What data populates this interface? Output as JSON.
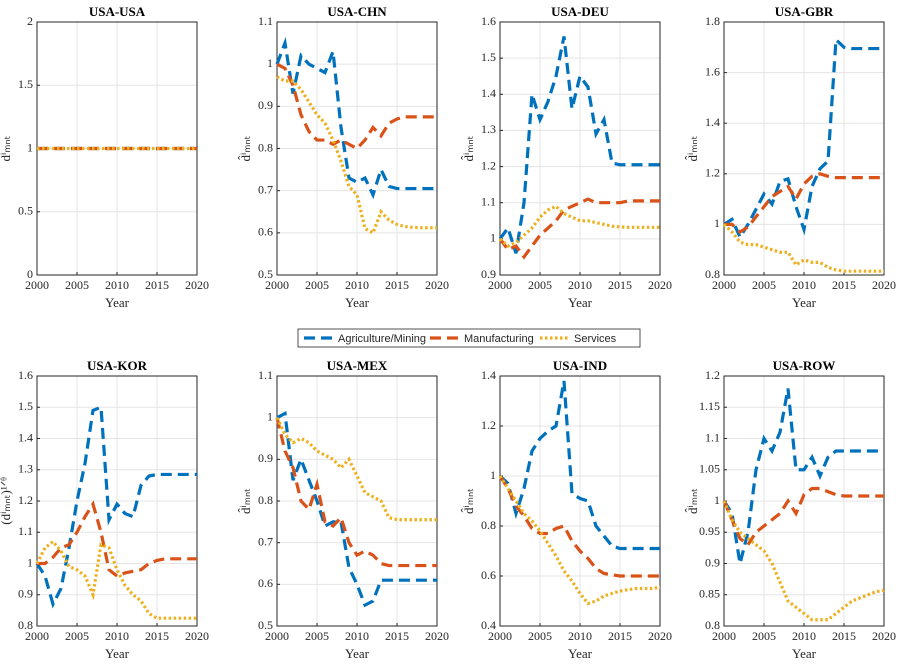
{
  "chart_data": [
    {
      "type": "line",
      "title": "USA-USA",
      "x_label": "Year",
      "y_label": "d̂ⁱₘₙₜ",
      "x": [
        2000,
        2001,
        2002,
        2003,
        2004,
        2005,
        2006,
        2007,
        2008,
        2009,
        2010,
        2011,
        2012,
        2013,
        2014,
        2015,
        2016,
        2017,
        2018,
        2019,
        2020
      ],
      "xlim": [
        2000,
        2020
      ],
      "xticks": [
        2000,
        2005,
        2010,
        2015,
        2020
      ],
      "ylim": [
        0,
        2
      ],
      "yticks": [
        0,
        0.5,
        1,
        1.5,
        2
      ],
      "grid": true,
      "series": [
        {
          "name": "Agriculture/Mining",
          "color": "#0072bd",
          "linestyle": "dashed",
          "values": [
            1,
            1,
            1,
            1,
            1,
            1,
            1,
            1,
            1,
            1,
            1,
            1,
            1,
            1,
            1,
            1,
            1,
            1,
            1,
            1,
            1
          ]
        },
        {
          "name": "Manufacturing",
          "color": "#d95319",
          "linestyle": "dashed",
          "values": [
            1,
            1,
            1,
            1,
            1,
            1,
            1,
            1,
            1,
            1,
            1,
            1,
            1,
            1,
            1,
            1,
            1,
            1,
            1,
            1,
            1
          ]
        },
        {
          "name": "Services",
          "color": "#edb120",
          "linestyle": "dotted",
          "values": [
            1,
            1,
            1,
            1,
            1,
            1,
            1,
            1,
            1,
            1,
            1,
            1,
            1,
            1,
            1,
            1,
            1,
            1,
            1,
            1,
            1
          ]
        }
      ]
    },
    {
      "type": "line",
      "title": "USA-CHN",
      "x_label": "Year",
      "y_label": "d̂ⁱₘₙₜ",
      "x": [
        2000,
        2001,
        2002,
        2003,
        2004,
        2005,
        2006,
        2007,
        2008,
        2009,
        2010,
        2011,
        2012,
        2013,
        2014,
        2015,
        2016,
        2017,
        2018,
        2019,
        2020
      ],
      "xlim": [
        2000,
        2020
      ],
      "xticks": [
        2000,
        2005,
        2010,
        2015,
        2020
      ],
      "ylim": [
        0.5,
        1.1
      ],
      "yticks": [
        0.5,
        0.6,
        0.7,
        0.8,
        0.9,
        1,
        1.1
      ],
      "grid": true,
      "series": [
        {
          "name": "Agriculture/Mining",
          "color": "#0072bd",
          "linestyle": "dashed",
          "values": [
            1.0,
            1.05,
            0.93,
            1.02,
            1.0,
            0.99,
            0.98,
            1.03,
            0.85,
            0.73,
            0.72,
            0.73,
            0.69,
            0.75,
            0.71,
            0.705,
            0.705,
            0.705,
            0.705,
            0.705,
            0.705
          ]
        },
        {
          "name": "Manufacturing",
          "color": "#d95319",
          "linestyle": "dashed",
          "values": [
            1.0,
            0.99,
            0.95,
            0.88,
            0.84,
            0.82,
            0.82,
            0.81,
            0.82,
            0.81,
            0.8,
            0.82,
            0.85,
            0.83,
            0.86,
            0.87,
            0.875,
            0.875,
            0.875,
            0.875,
            0.875
          ]
        },
        {
          "name": "Services",
          "color": "#edb120",
          "linestyle": "dotted",
          "values": [
            0.97,
            0.96,
            0.96,
            0.94,
            0.91,
            0.88,
            0.86,
            0.82,
            0.77,
            0.71,
            0.69,
            0.61,
            0.6,
            0.65,
            0.63,
            0.62,
            0.615,
            0.613,
            0.612,
            0.612,
            0.612
          ]
        }
      ]
    },
    {
      "type": "line",
      "title": "USA-DEU",
      "x_label": "Year",
      "y_label": "d̂ⁱₘₙₜ",
      "x": [
        2000,
        2001,
        2002,
        2003,
        2004,
        2005,
        2006,
        2007,
        2008,
        2009,
        2010,
        2011,
        2012,
        2013,
        2014,
        2015,
        2016,
        2017,
        2018,
        2019,
        2020
      ],
      "xlim": [
        2000,
        2020
      ],
      "xticks": [
        2000,
        2005,
        2010,
        2015,
        2020
      ],
      "ylim": [
        0.9,
        1.6
      ],
      "yticks": [
        0.9,
        1,
        1.1,
        1.2,
        1.3,
        1.4,
        1.5,
        1.6
      ],
      "grid": true,
      "series": [
        {
          "name": "Agriculture/Mining",
          "color": "#0072bd",
          "linestyle": "dashed",
          "values": [
            1.0,
            1.03,
            0.96,
            1.1,
            1.4,
            1.33,
            1.38,
            1.45,
            1.56,
            1.36,
            1.45,
            1.42,
            1.29,
            1.33,
            1.21,
            1.205,
            1.205,
            1.205,
            1.205,
            1.205,
            1.205
          ]
        },
        {
          "name": "Manufacturing",
          "color": "#d95319",
          "linestyle": "dashed",
          "values": [
            1.0,
            0.97,
            0.98,
            0.95,
            0.98,
            1.01,
            1.03,
            1.05,
            1.08,
            1.09,
            1.1,
            1.11,
            1.1,
            1.1,
            1.1,
            1.1,
            1.105,
            1.105,
            1.105,
            1.105,
            1.105
          ]
        },
        {
          "name": "Services",
          "color": "#edb120",
          "linestyle": "dotted",
          "values": [
            1.0,
            0.98,
            0.99,
            1.01,
            1.03,
            1.06,
            1.08,
            1.09,
            1.07,
            1.06,
            1.05,
            1.05,
            1.045,
            1.04,
            1.035,
            1.033,
            1.032,
            1.032,
            1.032,
            1.032,
            1.032
          ]
        }
      ]
    },
    {
      "type": "line",
      "title": "USA-GBR",
      "x_label": "Year",
      "y_label": "d̂ⁱₘₙₜ",
      "x": [
        2000,
        2001,
        2002,
        2003,
        2004,
        2005,
        2006,
        2007,
        2008,
        2009,
        2010,
        2011,
        2012,
        2013,
        2014,
        2015,
        2016,
        2017,
        2018,
        2019,
        2020
      ],
      "xlim": [
        2000,
        2020
      ],
      "xticks": [
        2000,
        2005,
        2010,
        2015,
        2020
      ],
      "ylim": [
        0.8,
        1.8
      ],
      "yticks": [
        0.8,
        1,
        1.2,
        1.4,
        1.6,
        1.8
      ],
      "grid": true,
      "series": [
        {
          "name": "Agriculture/Mining",
          "color": "#0072bd",
          "linestyle": "dashed",
          "values": [
            1.0,
            1.02,
            0.95,
            1.0,
            1.06,
            1.12,
            1.08,
            1.17,
            1.18,
            1.07,
            0.98,
            1.15,
            1.22,
            1.25,
            1.73,
            1.7,
            1.695,
            1.695,
            1.695,
            1.695,
            1.695
          ]
        },
        {
          "name": "Manufacturing",
          "color": "#d95319",
          "linestyle": "dashed",
          "values": [
            1.0,
            1.0,
            0.97,
            0.99,
            1.03,
            1.07,
            1.11,
            1.13,
            1.15,
            1.1,
            1.16,
            1.19,
            1.2,
            1.19,
            1.185,
            1.185,
            1.185,
            1.185,
            1.185,
            1.185,
            1.185
          ]
        },
        {
          "name": "Services",
          "color": "#edb120",
          "linestyle": "dotted",
          "values": [
            1.0,
            0.97,
            0.93,
            0.92,
            0.92,
            0.91,
            0.9,
            0.89,
            0.89,
            0.84,
            0.86,
            0.85,
            0.85,
            0.83,
            0.82,
            0.815,
            0.815,
            0.815,
            0.815,
            0.815,
            0.815
          ]
        }
      ]
    },
    {
      "type": "line",
      "title": "USA-KOR",
      "x_label": "Year",
      "y_label": "(d̂ⁱₘₙₜ)¹ᐟᶿ",
      "x": [
        2000,
        2001,
        2002,
        2003,
        2004,
        2005,
        2006,
        2007,
        2008,
        2009,
        2010,
        2011,
        2012,
        2013,
        2014,
        2015,
        2016,
        2017,
        2018,
        2019,
        2020
      ],
      "xlim": [
        2000,
        2020
      ],
      "xticks": [
        2000,
        2005,
        2010,
        2015,
        2020
      ],
      "ylim": [
        0.8,
        1.6
      ],
      "yticks": [
        0.8,
        0.9,
        1,
        1.1,
        1.2,
        1.3,
        1.4,
        1.5,
        1.6
      ],
      "grid": true,
      "series": [
        {
          "name": "Agriculture/Mining",
          "color": "#0072bd",
          "linestyle": "dashed",
          "values": [
            1.0,
            0.96,
            0.87,
            0.92,
            1.05,
            1.2,
            1.32,
            1.49,
            1.5,
            1.14,
            1.19,
            1.16,
            1.15,
            1.25,
            1.28,
            1.285,
            1.285,
            1.285,
            1.285,
            1.285,
            1.285
          ]
        },
        {
          "name": "Manufacturing",
          "color": "#d95319",
          "linestyle": "dashed",
          "values": [
            1.0,
            1.0,
            1.02,
            1.05,
            1.06,
            1.1,
            1.15,
            1.19,
            1.1,
            0.98,
            0.96,
            0.97,
            0.975,
            0.98,
            1.0,
            1.01,
            1.015,
            1.015,
            1.015,
            1.015,
            1.015
          ]
        },
        {
          "name": "Services",
          "color": "#edb120",
          "linestyle": "dotted",
          "values": [
            1.0,
            1.05,
            1.07,
            1.04,
            0.99,
            0.98,
            0.96,
            0.9,
            1.06,
            1.05,
            0.98,
            0.93,
            0.9,
            0.88,
            0.84,
            0.825,
            0.825,
            0.825,
            0.825,
            0.825,
            0.825
          ]
        }
      ]
    },
    {
      "type": "line",
      "title": "USA-MEX",
      "x_label": "Year",
      "y_label": "d̂ⁱₘₙₜ",
      "x": [
        2000,
        2001,
        2002,
        2003,
        2004,
        2005,
        2006,
        2007,
        2008,
        2009,
        2010,
        2011,
        2012,
        2013,
        2014,
        2015,
        2016,
        2017,
        2018,
        2019,
        2020
      ],
      "xlim": [
        2000,
        2020
      ],
      "xticks": [
        2000,
        2005,
        2010,
        2015,
        2020
      ],
      "ylim": [
        0.5,
        1.1
      ],
      "yticks": [
        0.5,
        0.6,
        0.7,
        0.8,
        0.9,
        1,
        1.1
      ],
      "grid": true,
      "series": [
        {
          "name": "Agriculture/Mining",
          "color": "#0072bd",
          "linestyle": "dashed",
          "values": [
            1.0,
            1.01,
            0.85,
            0.9,
            0.85,
            0.8,
            0.74,
            0.75,
            0.75,
            0.64,
            0.6,
            0.55,
            0.56,
            0.61,
            0.61,
            0.61,
            0.61,
            0.61,
            0.61,
            0.61,
            0.61
          ]
        },
        {
          "name": "Manufacturing",
          "color": "#d95319",
          "linestyle": "dashed",
          "values": [
            1.0,
            0.92,
            0.88,
            0.8,
            0.78,
            0.84,
            0.75,
            0.74,
            0.76,
            0.7,
            0.67,
            0.68,
            0.67,
            0.65,
            0.645,
            0.645,
            0.645,
            0.645,
            0.645,
            0.645,
            0.645
          ]
        },
        {
          "name": "Services",
          "color": "#edb120",
          "linestyle": "dotted",
          "values": [
            1.0,
            0.96,
            0.94,
            0.95,
            0.94,
            0.92,
            0.91,
            0.9,
            0.88,
            0.9,
            0.86,
            0.82,
            0.81,
            0.8,
            0.76,
            0.755,
            0.755,
            0.755,
            0.755,
            0.755,
            0.755
          ]
        }
      ]
    },
    {
      "type": "line",
      "title": "USA-IND",
      "x_label": "Year",
      "y_label": "d̂ⁱₘₙₜ",
      "x": [
        2000,
        2001,
        2002,
        2003,
        2004,
        2005,
        2006,
        2007,
        2008,
        2009,
        2010,
        2011,
        2012,
        2013,
        2014,
        2015,
        2016,
        2017,
        2018,
        2019,
        2020
      ],
      "xlim": [
        2000,
        2020
      ],
      "xticks": [
        2000,
        2005,
        2010,
        2015,
        2020
      ],
      "ylim": [
        0.4,
        1.4
      ],
      "yticks": [
        0.4,
        0.6,
        0.8,
        1,
        1.2,
        1.4
      ],
      "grid": true,
      "series": [
        {
          "name": "Agriculture/Mining",
          "color": "#0072bd",
          "linestyle": "dashed",
          "values": [
            1.0,
            0.97,
            0.85,
            0.95,
            1.1,
            1.15,
            1.18,
            1.2,
            1.38,
            0.93,
            0.91,
            0.9,
            0.8,
            0.76,
            0.72,
            0.71,
            0.71,
            0.71,
            0.71,
            0.71,
            0.71
          ]
        },
        {
          "name": "Manufacturing",
          "color": "#d95319",
          "linestyle": "dashed",
          "values": [
            1.0,
            0.95,
            0.88,
            0.84,
            0.79,
            0.77,
            0.77,
            0.79,
            0.8,
            0.74,
            0.7,
            0.67,
            0.63,
            0.61,
            0.605,
            0.6,
            0.6,
            0.6,
            0.6,
            0.6,
            0.6
          ]
        },
        {
          "name": "Services",
          "color": "#edb120",
          "linestyle": "dotted",
          "values": [
            1.0,
            0.95,
            0.9,
            0.85,
            0.82,
            0.78,
            0.73,
            0.68,
            0.62,
            0.58,
            0.53,
            0.49,
            0.5,
            0.52,
            0.53,
            0.54,
            0.545,
            0.55,
            0.55,
            0.55,
            0.555
          ]
        }
      ]
    },
    {
      "type": "line",
      "title": "USA-ROW",
      "x_label": "Year",
      "y_label": "d̂ⁱₘₙₜ",
      "x": [
        2000,
        2001,
        2002,
        2003,
        2004,
        2005,
        2006,
        2007,
        2008,
        2009,
        2010,
        2011,
        2012,
        2013,
        2014,
        2015,
        2016,
        2017,
        2018,
        2019,
        2020
      ],
      "xlim": [
        2000,
        2020
      ],
      "xticks": [
        2000,
        2005,
        2010,
        2015,
        2020
      ],
      "ylim": [
        0.8,
        1.2
      ],
      "yticks": [
        0.8,
        0.85,
        0.9,
        0.95,
        1,
        1.05,
        1.1,
        1.15,
        1.2
      ],
      "grid": true,
      "series": [
        {
          "name": "Agriculture/Mining",
          "color": "#0072bd",
          "linestyle": "dashed",
          "values": [
            1.0,
            0.98,
            0.9,
            0.95,
            1.05,
            1.1,
            1.08,
            1.11,
            1.18,
            1.05,
            1.05,
            1.07,
            1.04,
            1.07,
            1.08,
            1.08,
            1.08,
            1.08,
            1.08,
            1.08,
            1.08
          ]
        },
        {
          "name": "Manufacturing",
          "color": "#d95319",
          "linestyle": "dashed",
          "values": [
            1.0,
            0.97,
            0.94,
            0.93,
            0.95,
            0.96,
            0.97,
            0.98,
            1.0,
            0.98,
            1.01,
            1.02,
            1.02,
            1.015,
            1.01,
            1.008,
            1.008,
            1.008,
            1.008,
            1.008,
            1.008
          ]
        },
        {
          "name": "Services",
          "color": "#edb120",
          "linestyle": "dotted",
          "values": [
            1.0,
            0.97,
            0.95,
            0.94,
            0.93,
            0.92,
            0.9,
            0.87,
            0.84,
            0.83,
            0.82,
            0.81,
            0.81,
            0.81,
            0.82,
            0.83,
            0.84,
            0.845,
            0.85,
            0.855,
            0.857
          ]
        }
      ]
    }
  ]
}
